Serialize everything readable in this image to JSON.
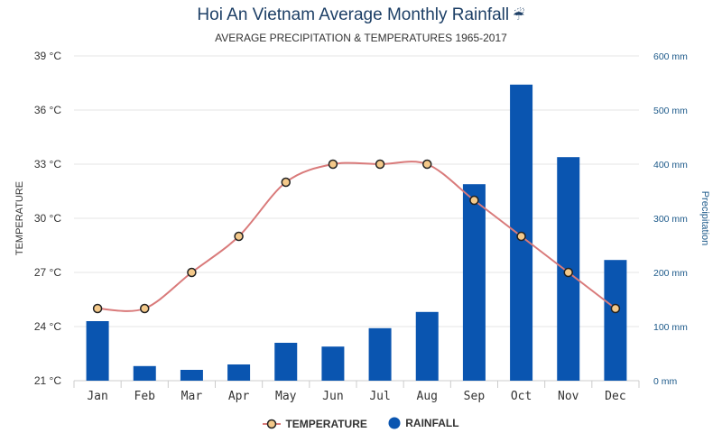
{
  "title": "Hoi An Vietnam Average Monthly Rainfall",
  "title_icon": "umbrella-rain-icon",
  "subtitle": "AVERAGE PRECIPITATION & TEMPERATURES 1965-2017",
  "colors": {
    "rainfall": "#0a55b0",
    "temperature_line": "#d97a7a",
    "temperature_marker_fill": "#f4c98a",
    "grid": "#e6e6e6",
    "right_axis_text": "#1d5a8a"
  },
  "chart_data": {
    "type": "bar",
    "categories": [
      "Jan",
      "Feb",
      "Mar",
      "Apr",
      "May",
      "Jun",
      "Jul",
      "Aug",
      "Sep",
      "Oct",
      "Nov",
      "Dec"
    ],
    "series": [
      {
        "name": "RAINFALL",
        "type": "bar",
        "axis": "right",
        "values": [
          110,
          27,
          20,
          30,
          70,
          63,
          97,
          127,
          363,
          547,
          413,
          223
        ]
      },
      {
        "name": "TEMPERATURE",
        "type": "line",
        "axis": "left",
        "values": [
          25,
          25,
          27,
          29,
          32,
          33,
          33,
          33,
          31,
          29,
          27,
          25
        ]
      }
    ],
    "left_axis": {
      "label": "TEMPERATURE",
      "ticks": [
        "21 °C",
        "24 °C",
        "27 °C",
        "30 °C",
        "33 °C",
        "36 °C",
        "39 °C"
      ],
      "range": [
        21,
        39
      ]
    },
    "right_axis": {
      "label": "Precipitation",
      "ticks": [
        "0 mm",
        "100 mm",
        "200 mm",
        "300 mm",
        "400 mm",
        "500 mm",
        "600 mm"
      ],
      "range": [
        0,
        600
      ]
    },
    "grid": true,
    "legend_position": "bottom-center"
  }
}
